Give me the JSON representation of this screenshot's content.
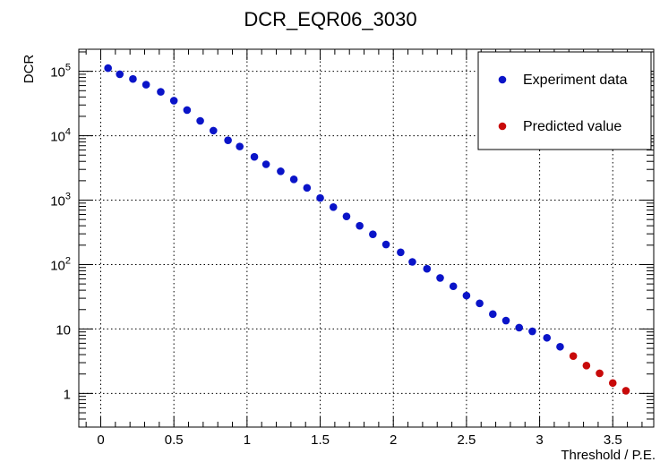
{
  "chart_data": {
    "type": "scatter",
    "title": "DCR_EQR06_3030",
    "xlabel": "Threshold / P.E.",
    "ylabel": "DCR",
    "xlim": [
      -0.15,
      3.78
    ],
    "ylim": [
      0.3,
      220000
    ],
    "yscale": "log",
    "grid": true,
    "legend_position": "top-right",
    "x_ticks": [
      {
        "value": 0,
        "label": "0"
      },
      {
        "value": 0.5,
        "label": "0.5"
      },
      {
        "value": 1,
        "label": "1"
      },
      {
        "value": 1.5,
        "label": "1.5"
      },
      {
        "value": 2,
        "label": "2"
      },
      {
        "value": 2.5,
        "label": "2.5"
      },
      {
        "value": 3,
        "label": "3"
      },
      {
        "value": 3.5,
        "label": "3.5"
      }
    ],
    "y_ticks": [
      {
        "value": 1,
        "base": "1",
        "exp": ""
      },
      {
        "value": 10,
        "base": "10",
        "exp": ""
      },
      {
        "value": 100,
        "base": "10",
        "exp": "2"
      },
      {
        "value": 1000,
        "base": "10",
        "exp": "3"
      },
      {
        "value": 10000,
        "base": "10",
        "exp": "4"
      },
      {
        "value": 100000,
        "base": "10",
        "exp": "5"
      }
    ],
    "series": [
      {
        "name": "Experiment data",
        "color": "#0a14c8",
        "points": [
          [
            0.05,
            112000
          ],
          [
            0.13,
            90000
          ],
          [
            0.22,
            76000
          ],
          [
            0.31,
            62000
          ],
          [
            0.41,
            48000
          ],
          [
            0.5,
            35000
          ],
          [
            0.59,
            25000
          ],
          [
            0.68,
            17000
          ],
          [
            0.77,
            12000
          ],
          [
            0.87,
            8500
          ],
          [
            0.95,
            6800
          ],
          [
            1.05,
            4700
          ],
          [
            1.13,
            3600
          ],
          [
            1.23,
            2800
          ],
          [
            1.32,
            2100
          ],
          [
            1.41,
            1550
          ],
          [
            1.5,
            1080
          ],
          [
            1.59,
            780
          ],
          [
            1.68,
            560
          ],
          [
            1.77,
            400
          ],
          [
            1.86,
            295
          ],
          [
            1.95,
            205
          ],
          [
            2.05,
            155
          ],
          [
            2.13,
            110
          ],
          [
            2.23,
            86
          ],
          [
            2.32,
            62
          ],
          [
            2.41,
            46
          ],
          [
            2.5,
            33
          ],
          [
            2.59,
            25
          ],
          [
            2.68,
            17
          ],
          [
            2.77,
            13.5
          ],
          [
            2.86,
            10.5
          ],
          [
            2.95,
            9.2
          ],
          [
            3.05,
            7.3
          ],
          [
            3.14,
            5.3
          ]
        ]
      },
      {
        "name": "Predicted value",
        "color": "#c80a0a",
        "points": [
          [
            3.23,
            3.8
          ],
          [
            3.32,
            2.7
          ],
          [
            3.41,
            2.05
          ],
          [
            3.5,
            1.45
          ],
          [
            3.59,
            1.1
          ]
        ]
      }
    ]
  }
}
